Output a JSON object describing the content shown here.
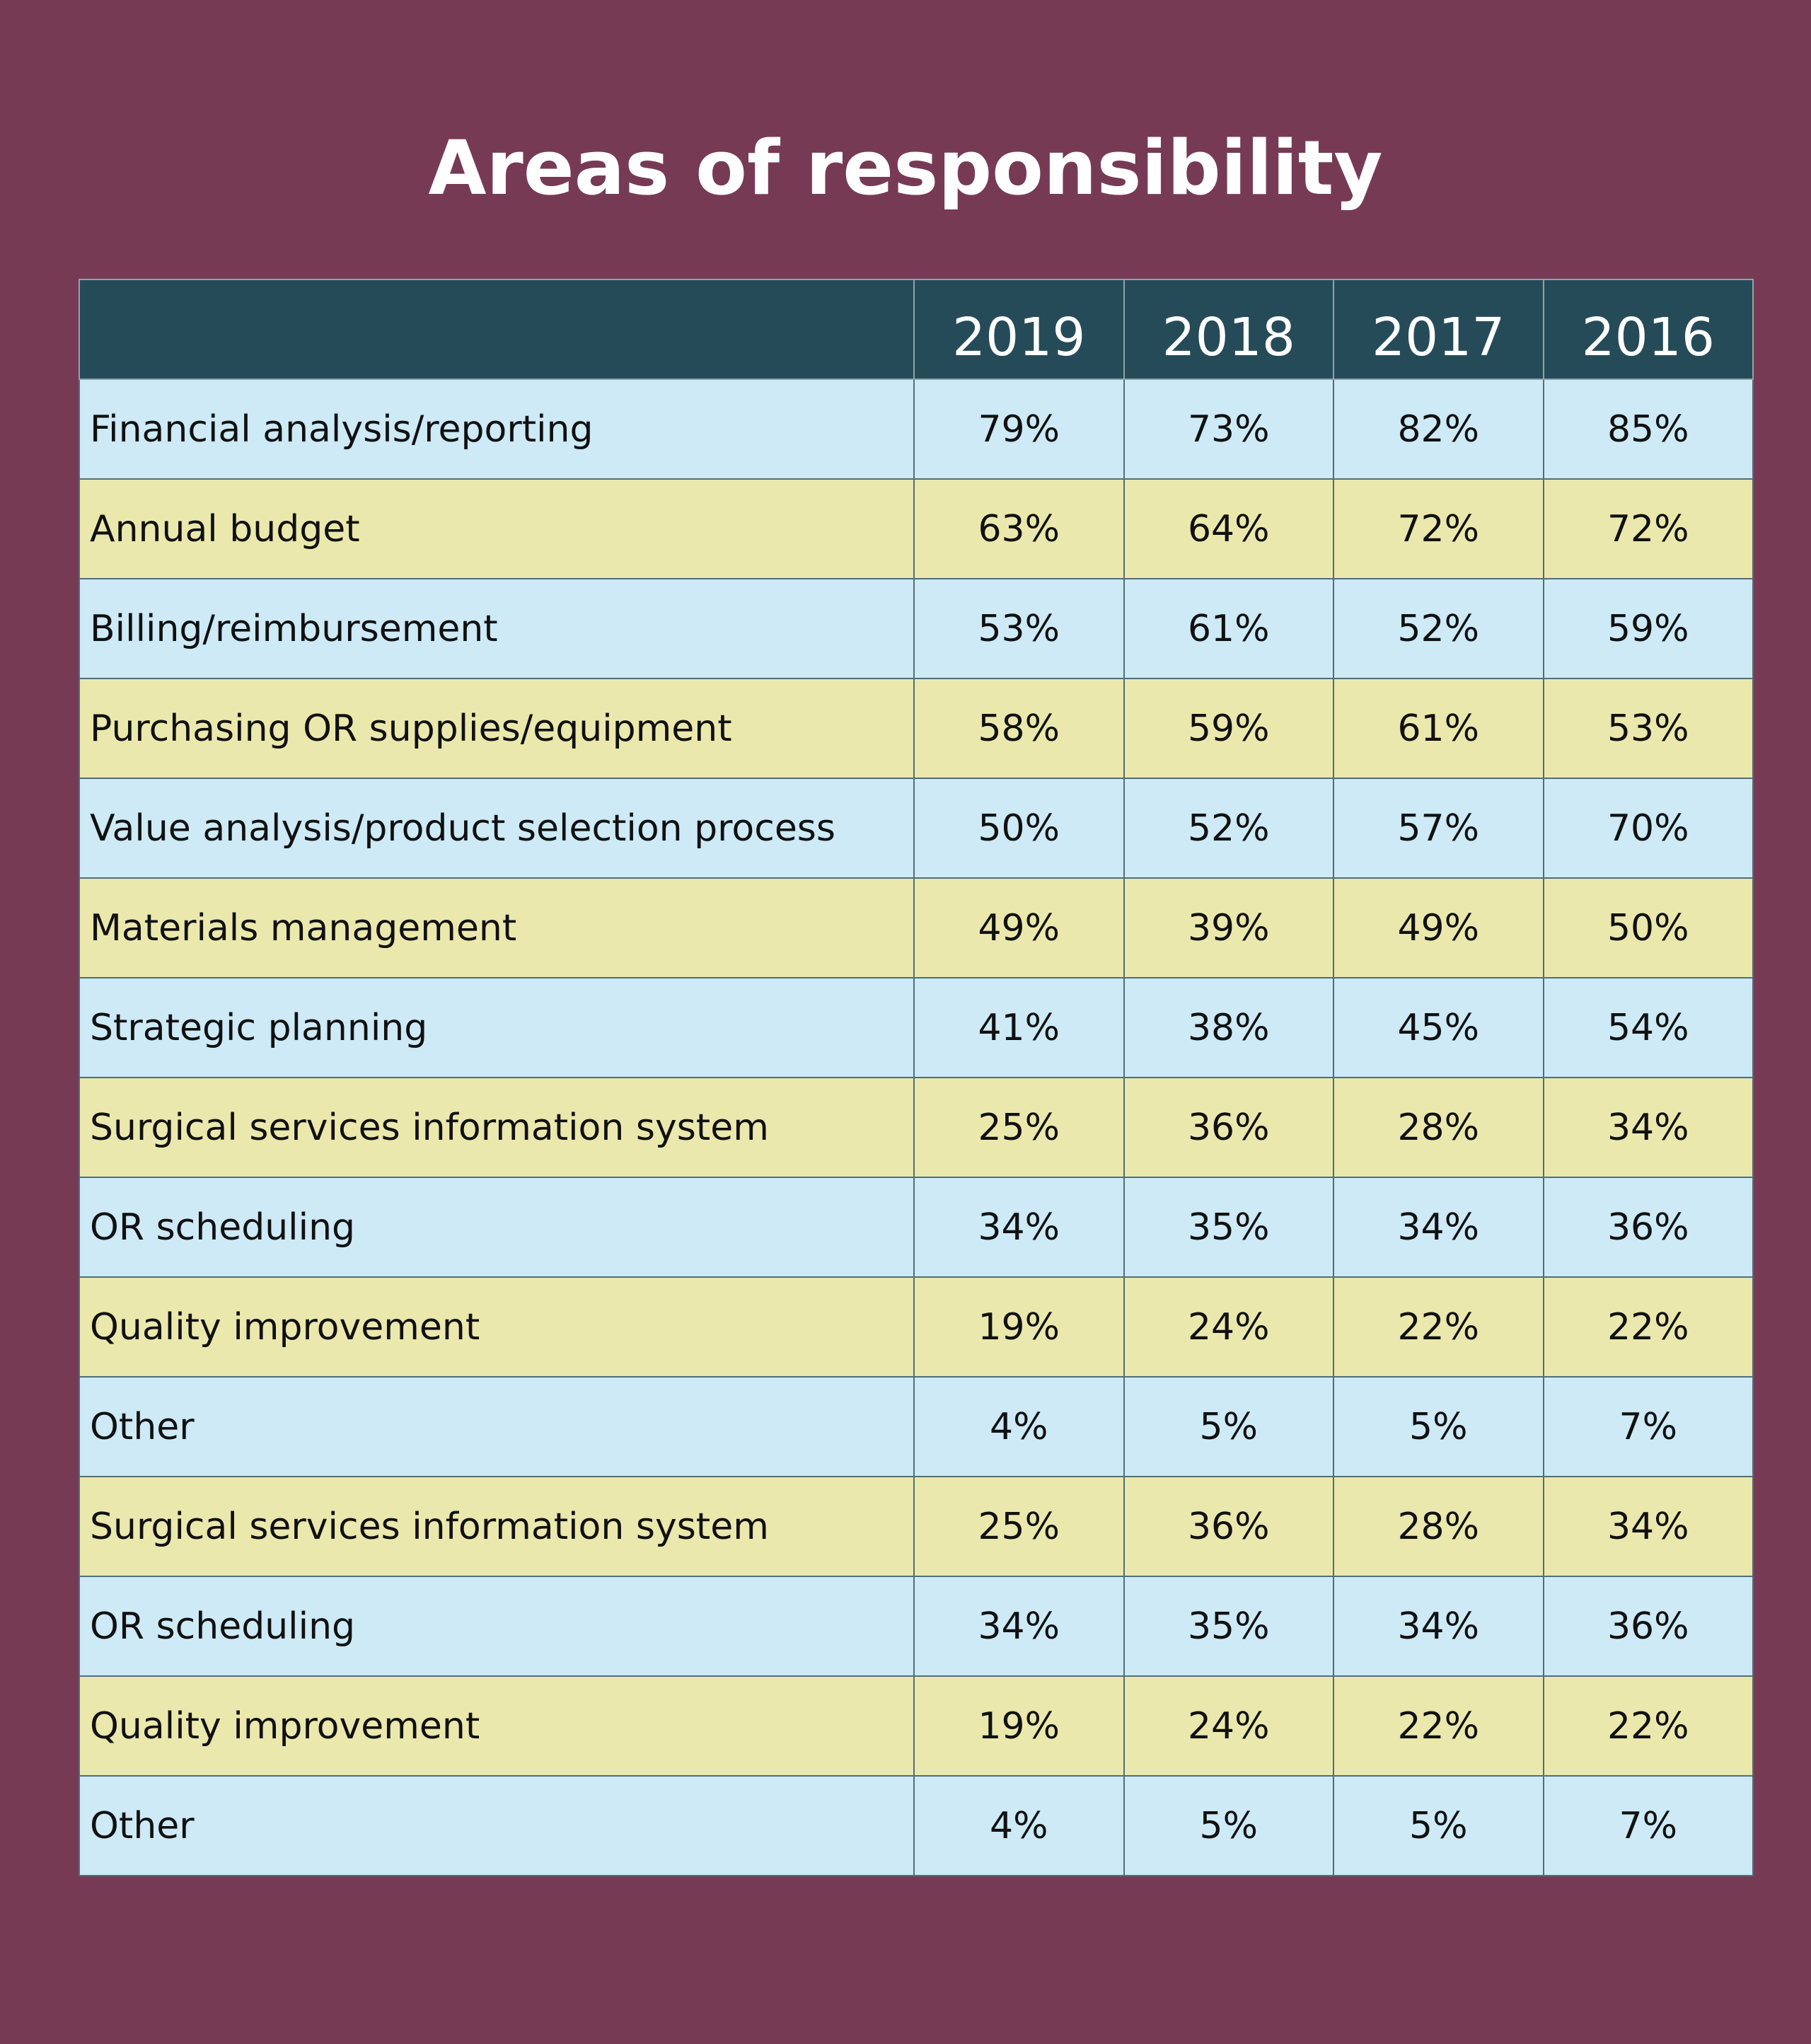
{
  "title": "Areas of responsibility",
  "colors": {
    "background": "#773a55",
    "header": "#264b58",
    "row_blue": "#cdeaf6",
    "row_yellow": "#ebe8ad"
  },
  "chart_data": {
    "type": "table",
    "title": "Areas of responsibility",
    "columns": [
      "",
      "2019",
      "2018",
      "2017",
      "2016"
    ],
    "rows": [
      {
        "label": "Financial analysis/reporting",
        "values": [
          "79%",
          "73%",
          "82%",
          "85%"
        ]
      },
      {
        "label": "Annual budget",
        "values": [
          "63%",
          "64%",
          "72%",
          "72%"
        ]
      },
      {
        "label": "Billing/reimbursement",
        "values": [
          "53%",
          "61%",
          "52%",
          "59%"
        ]
      },
      {
        "label": "Purchasing OR supplies/equipment",
        "values": [
          "58%",
          "59%",
          "61%",
          "53%"
        ]
      },
      {
        "label": "Value analysis/product selection process",
        "values": [
          "50%",
          "52%",
          "57%",
          "70%"
        ]
      },
      {
        "label": "Materials management",
        "values": [
          "49%",
          "39%",
          "49%",
          "50%"
        ]
      },
      {
        "label": "Strategic planning",
        "values": [
          "41%",
          "38%",
          "45%",
          "54%"
        ]
      },
      {
        "label": "Surgical services information system",
        "values": [
          "25%",
          "36%",
          "28%",
          "34%"
        ]
      },
      {
        "label": "OR scheduling",
        "values": [
          "34%",
          "35%",
          "34%",
          "36%"
        ]
      },
      {
        "label": "Quality improvement",
        "values": [
          "19%",
          "24%",
          "22%",
          "22%"
        ]
      },
      {
        "label": "Other",
        "values": [
          "4%",
          "5%",
          "5%",
          "7%"
        ]
      },
      {
        "label": "Surgical services information system",
        "values": [
          "25%",
          "36%",
          "28%",
          "34%"
        ]
      },
      {
        "label": "OR scheduling",
        "values": [
          "34%",
          "35%",
          "34%",
          "36%"
        ]
      },
      {
        "label": "Quality improvement",
        "values": [
          "19%",
          "24%",
          "22%",
          "22%"
        ]
      },
      {
        "label": "Other",
        "values": [
          "4%",
          "5%",
          "5%",
          "7%"
        ]
      }
    ]
  }
}
